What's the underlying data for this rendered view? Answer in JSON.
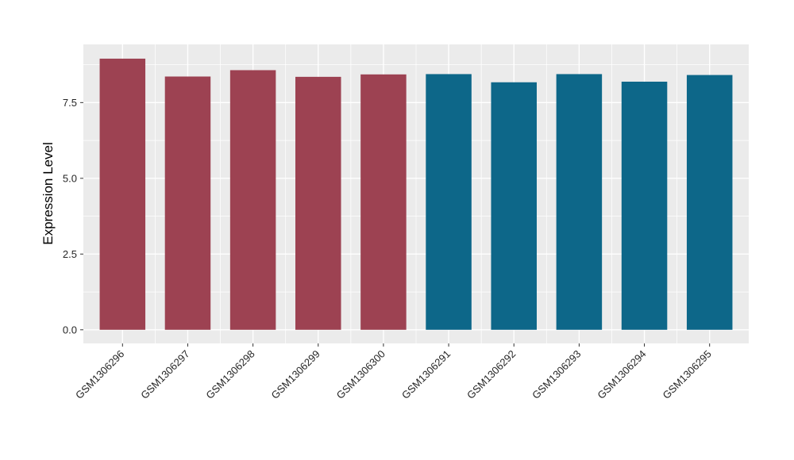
{
  "figure": {
    "background": "#ffffff",
    "panel_background": "#ebebeb",
    "gridline_color": "#ffffff",
    "tick_mark_color": "#333333",
    "tick_label_color": "#262626",
    "axis_title_color": "#000000"
  },
  "chart_data": {
    "type": "bar",
    "title": "",
    "xlabel": "",
    "ylabel": "Expression Level",
    "categories": [
      "GSM1306296",
      "GSM1306297",
      "GSM1306298",
      "GSM1306299",
      "GSM1306300",
      "GSM1306291",
      "GSM1306292",
      "GSM1306293",
      "GSM1306294",
      "GSM1306295"
    ],
    "values": [
      8.95,
      8.36,
      8.57,
      8.35,
      8.43,
      8.44,
      8.17,
      8.44,
      8.19,
      8.41
    ],
    "bar_colors": [
      "#9d4252",
      "#9d4252",
      "#9d4252",
      "#9d4252",
      "#9d4252",
      "#0d6789",
      "#0d6789",
      "#0d6789",
      "#0d6789",
      "#0d6789"
    ],
    "group_colors": {
      "maroon": "#9d4252",
      "teal": "#0d6789"
    },
    "y_ticks": [
      0.0,
      2.5,
      5.0,
      7.5
    ],
    "y_tick_labels": [
      "0.0",
      "2.5",
      "5.0",
      "7.5"
    ],
    "y_minor_ticks": [
      1.25,
      3.75,
      6.25,
      8.75
    ],
    "ylim": [
      -0.45,
      9.42
    ],
    "bar_width_fraction": 0.7,
    "grid": true,
    "legend": false,
    "x_tick_angle": -45
  }
}
